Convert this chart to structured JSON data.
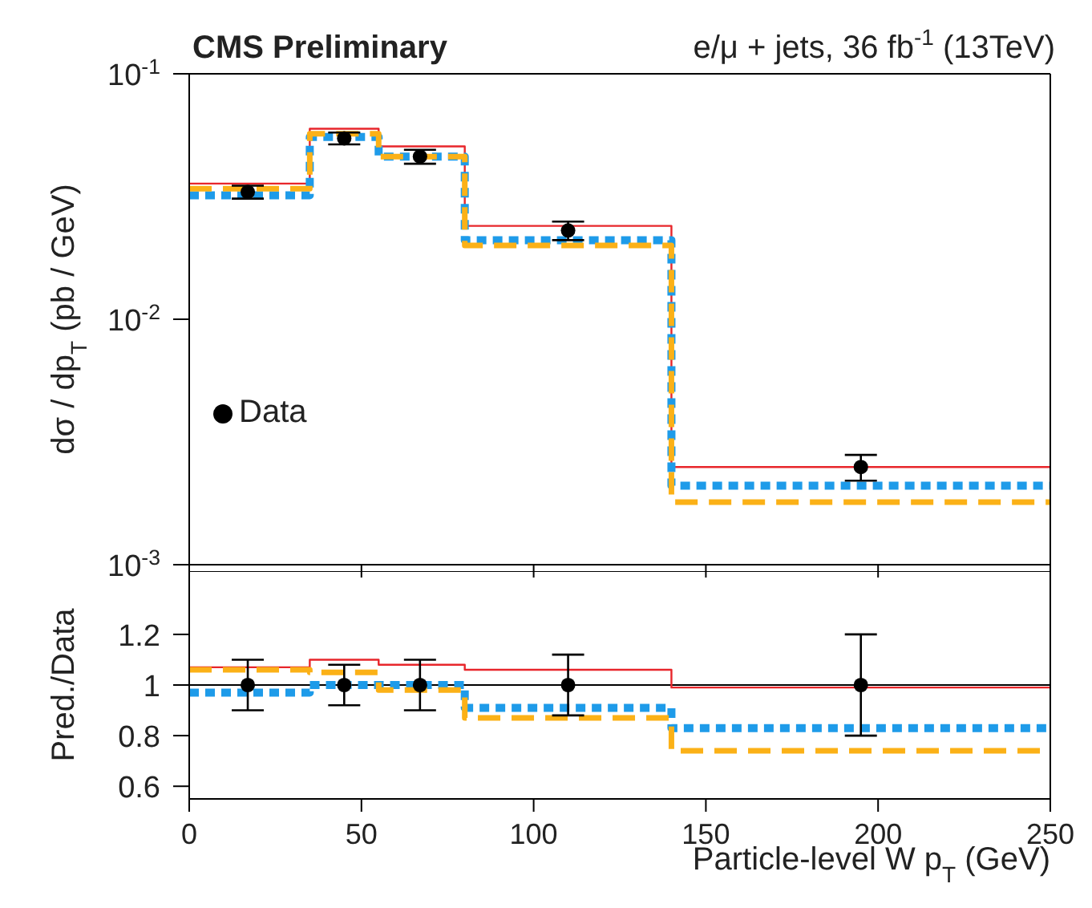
{
  "chart_data": [
    {
      "type": "step",
      "title": "CMS Preliminary",
      "subtitle": "e/μ + jets, 36 fb$^{-1}$ (13TeV)",
      "ylabel": "dσ / dp$_{T}$ (pb / GeV)",
      "log": "y",
      "xlim": [
        0,
        250
      ],
      "xticks": [
        0,
        50,
        100,
        150,
        200,
        250
      ],
      "ylim": [
        0.001,
        0.1
      ],
      "yticks": [
        {
          "value": 0.001,
          "label": "10$^{-3}$"
        },
        {
          "value": 0.01,
          "label": "10$^{-2}$"
        },
        {
          "value": 0.1,
          "label": "10$^{-1}$"
        }
      ],
      "tick_labels": "y",
      "grid": false,
      "legend": "bottom left",
      "series": [
        {
          "color": "#e8262b",
          "line_style": "solid",
          "marker": "none",
          "x": [
            0,
            35,
            55,
            80,
            140,
            250
          ],
          "values": [
            0.0357,
            0.0597,
            0.0506,
            0.024,
            0.0025,
            0.0025
          ]
        },
        {
          "color": "#1e9be9",
          "line_style": "dotted",
          "marker": "none",
          "x": [
            0,
            35,
            55,
            80,
            140,
            250
          ],
          "values": [
            0.032,
            0.0553,
            0.046,
            0.021,
            0.0021,
            0.0021
          ]
        },
        {
          "color": "#fbb117",
          "line_style": "dashed",
          "marker": "none",
          "x": [
            0,
            35,
            55,
            80,
            140,
            250
          ],
          "values": [
            0.034,
            0.057,
            0.046,
            0.02,
            0.0018,
            0.0018
          ]
        },
        {
          "type": "scatter",
          "name": "Data",
          "color": "#000000",
          "marker": "circle",
          "x": [
            17,
            45,
            67,
            110,
            195
          ],
          "values": [
            0.033,
            0.0546,
            0.046,
            0.023,
            0.0025
          ],
          "errors": [
            0.002,
            0.003,
            0.003,
            0.002,
            0.0003
          ]
        }
      ]
    },
    {
      "type": "step",
      "xlabel": "Particle-level W p$_{T}$ (GeV)",
      "ylabel": "Pred./Data",
      "xlim": [
        0,
        250
      ],
      "xticks": [
        0,
        50,
        100,
        150,
        200,
        250
      ],
      "ylim": [
        0.55,
        1.45
      ],
      "yticks": [
        0.6,
        0.8,
        1,
        {
          "value": 1.2,
          "label": "1.2"
        }
      ],
      "grid": false,
      "ref_lines": [
        {
          "axis": "y",
          "value": 1,
          "color": "#000000"
        }
      ],
      "series": [
        {
          "color": "#e8262b",
          "line_style": "solid",
          "marker": "none",
          "x": [
            0,
            35,
            55,
            80,
            140,
            250
          ],
          "values": [
            1.07,
            1.1,
            1.08,
            1.06,
            0.99,
            0.99
          ]
        },
        {
          "color": "#1e9be9",
          "line_style": "dotted",
          "marker": "none",
          "x": [
            0,
            35,
            55,
            80,
            140,
            250
          ],
          "values": [
            0.97,
            1.0,
            1.0,
            0.91,
            0.83,
            0.83
          ]
        },
        {
          "color": "#fbb117",
          "line_style": "dashed",
          "marker": "none",
          "x": [
            0,
            35,
            55,
            80,
            140,
            250
          ],
          "values": [
            1.06,
            1.05,
            0.98,
            0.87,
            0.74,
            0.74
          ]
        },
        {
          "type": "scatter",
          "color": "#000000",
          "marker": "circle",
          "x": [
            17,
            45,
            67,
            110,
            195
          ],
          "values": [
            1,
            1,
            1,
            1,
            1
          ],
          "errors": [
            0.1,
            0.08,
            0.1,
            0.12,
            0.2
          ]
        }
      ]
    }
  ]
}
